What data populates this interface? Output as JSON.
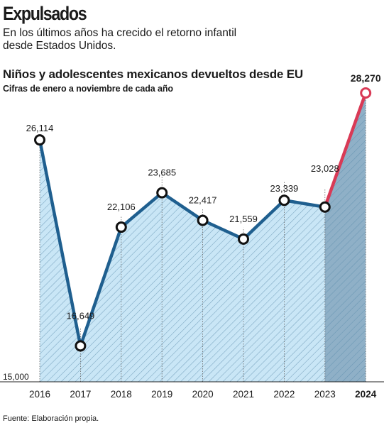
{
  "header": {
    "headline": "Expulsados",
    "dek": "En los últimos años ha crecido el retorno infantil desde Estados Unidos."
  },
  "footer": {
    "source": "Fuente: Elaboración propia."
  },
  "colors": {
    "line_main": "#1f5f8f",
    "line_last": "#d93a56",
    "area_main": "#c9e6f6",
    "area_last": "#8fb0c7",
    "hatch": "#5f8fae"
  },
  "chart_data": {
    "type": "area",
    "title": "Niños y adolescentes mexicanos devueltos desde EU",
    "subtitle": "Cifras de enero a noviembre de cada año",
    "x": [
      "2016",
      "2017",
      "2018",
      "2019",
      "2020",
      "2021",
      "2022",
      "2023",
      "2024"
    ],
    "values": [
      26114,
      16649,
      22106,
      23685,
      22417,
      21559,
      23339,
      23028,
      28270
    ],
    "value_labels": [
      "26,114",
      "16,649",
      "22,106",
      "23,685",
      "22,417",
      "21,559",
      "23,339",
      "23,028",
      "28,270"
    ],
    "y_tick_label": "15,000",
    "y_baseline": 15000,
    "ylim": [
      15000,
      28270
    ],
    "highlight_index": 8,
    "grid": false,
    "legend": "none"
  }
}
